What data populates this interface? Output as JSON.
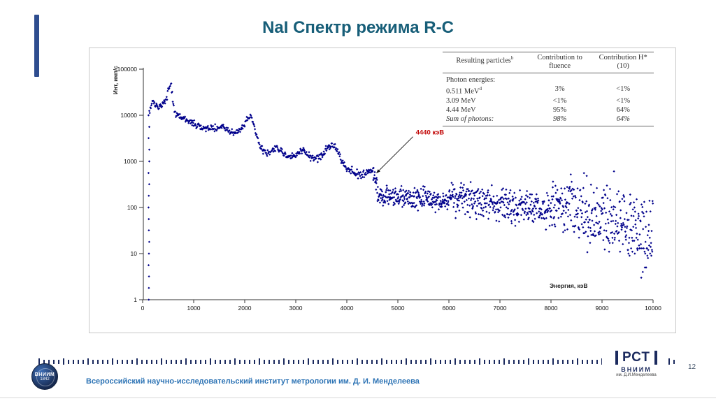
{
  "slide": {
    "title": "NaI Спектр режима R-C",
    "page_number": "12",
    "footer_institute": "Всероссийский научно-исследовательский институт метрологии им. Д. И. Менделеева",
    "logo_left": {
      "line1": "ВНИИМ",
      "line2": "1842"
    },
    "logo_right": {
      "brand": "РСТ",
      "org": "ВНИИМ",
      "sub": "им. Д.И.Менделеева"
    }
  },
  "colors": {
    "accent_bar": "#2e4d8f",
    "title": "#175e78",
    "annotation": "#c00000",
    "institute_text": "#2e74b5",
    "navy": "#1b2a5e"
  },
  "chart_data": {
    "type": "scatter",
    "title": "",
    "xlabel": "Энергия, кэВ",
    "ylabel": "Инт, имп/с",
    "y_scale": "log",
    "xlim": [
      0,
      10000
    ],
    "ylim": [
      1,
      100000
    ],
    "x_ticks": [
      0,
      1000,
      2000,
      3000,
      4000,
      5000,
      6000,
      7000,
      8000,
      9000,
      10000
    ],
    "y_ticks": [
      1,
      10,
      100,
      1000,
      10000,
      100000
    ],
    "grid": false,
    "marker_color": "#00008b",
    "marker_shape": "diamond",
    "annotation": {
      "text": "4440 кэВ",
      "color": "#c00000",
      "text_x": 5350,
      "text_y": 3800,
      "arrow_x": 4575,
      "arrow_y": 550
    },
    "left_column": {
      "x": 118,
      "values": [
        1,
        1.8,
        3.2,
        5.6,
        10,
        18,
        32,
        56,
        100,
        180,
        320,
        560,
        1000,
        1800,
        3200,
        5600,
        10000
      ]
    },
    "scatter_sigma_log": [
      [
        4500,
        0.02
      ],
      [
        6000,
        0.06
      ],
      [
        8000,
        0.09
      ],
      [
        9000,
        0.15
      ],
      [
        10001,
        0.22
      ]
    ],
    "quantize_above": 9100,
    "envelope_points": [
      [
        130,
        9000
      ],
      [
        150,
        12500
      ],
      [
        175,
        14000
      ],
      [
        200,
        15000
      ],
      [
        230,
        15800
      ],
      [
        260,
        15000
      ],
      [
        290,
        14000
      ],
      [
        320,
        13200
      ],
      [
        350,
        13400
      ],
      [
        380,
        14200
      ],
      [
        410,
        15200
      ],
      [
        440,
        17000
      ],
      [
        470,
        21000
      ],
      [
        500,
        28000
      ],
      [
        520,
        34000
      ],
      [
        540,
        38500
      ],
      [
        555,
        40000
      ],
      [
        570,
        33000
      ],
      [
        585,
        22000
      ],
      [
        600,
        14500
      ],
      [
        620,
        10800
      ],
      [
        650,
        9200
      ],
      [
        700,
        8300
      ],
      [
        750,
        7700
      ],
      [
        800,
        7200
      ],
      [
        850,
        6800
      ],
      [
        900,
        6400
      ],
      [
        950,
        6000
      ],
      [
        1000,
        5600
      ],
      [
        1050,
        5200
      ],
      [
        1100,
        4900
      ],
      [
        1150,
        4700
      ],
      [
        1200,
        4500
      ],
      [
        1250,
        4400
      ],
      [
        1300,
        4600
      ],
      [
        1350,
        4400
      ],
      [
        1400,
        4250
      ],
      [
        1450,
        4450
      ],
      [
        1500,
        4700
      ],
      [
        1550,
        4800
      ],
      [
        1600,
        4400
      ],
      [
        1650,
        4100
      ],
      [
        1700,
        3900
      ],
      [
        1750,
        3700
      ],
      [
        1800,
        3600
      ],
      [
        1850,
        3700
      ],
      [
        1900,
        4000
      ],
      [
        1950,
        4600
      ],
      [
        2000,
        5600
      ],
      [
        2050,
        7100
      ],
      [
        2100,
        8100
      ],
      [
        2130,
        7600
      ],
      [
        2160,
        6100
      ],
      [
        2200,
        4100
      ],
      [
        2250,
        2700
      ],
      [
        2300,
        1850
      ],
      [
        2350,
        1500
      ],
      [
        2400,
        1350
      ],
      [
        2450,
        1300
      ],
      [
        2500,
        1330
      ],
      [
        2550,
        1450
      ],
      [
        2600,
        1560
      ],
      [
        2650,
        1600
      ],
      [
        2700,
        1450
      ],
      [
        2750,
        1300
      ],
      [
        2800,
        1180
      ],
      [
        2850,
        1100
      ],
      [
        2900,
        1060
      ],
      [
        2950,
        1090
      ],
      [
        3000,
        1160
      ],
      [
        3050,
        1300
      ],
      [
        3100,
        1450
      ],
      [
        3150,
        1500
      ],
      [
        3200,
        1370
      ],
      [
        3250,
        1200
      ],
      [
        3300,
        1080
      ],
      [
        3350,
        1000
      ],
      [
        3400,
        960
      ],
      [
        3450,
        1010
      ],
      [
        3500,
        1110
      ],
      [
        3550,
        1300
      ],
      [
        3600,
        1560
      ],
      [
        3650,
        1760
      ],
      [
        3700,
        1860
      ],
      [
        3750,
        1800
      ],
      [
        3800,
        1500
      ],
      [
        3850,
        1150
      ],
      [
        3900,
        850
      ],
      [
        3950,
        680
      ],
      [
        4000,
        600
      ],
      [
        4050,
        560
      ],
      [
        4100,
        530
      ],
      [
        4150,
        500
      ],
      [
        4200,
        480
      ],
      [
        4250,
        460
      ],
      [
        4300,
        450
      ],
      [
        4350,
        470
      ],
      [
        4400,
        525
      ],
      [
        4440,
        555
      ],
      [
        4480,
        505
      ],
      [
        4520,
        380
      ],
      [
        4560,
        235
      ],
      [
        4600,
        150
      ],
      [
        4650,
        115
      ],
      [
        4700,
        101
      ],
      [
        4800,
        96
      ],
      [
        4900,
        97
      ],
      [
        5000,
        99
      ],
      [
        5100,
        98
      ],
      [
        5200,
        97
      ],
      [
        5300,
        96
      ],
      [
        5400,
        95
      ],
      [
        5500,
        94
      ],
      [
        5600,
        92
      ],
      [
        5700,
        90
      ],
      [
        5800,
        88
      ],
      [
        5900,
        86
      ],
      [
        6000,
        84
      ],
      [
        6100,
        82
      ],
      [
        6200,
        80
      ],
      [
        6300,
        78
      ],
      [
        6400,
        76
      ],
      [
        6500,
        73
      ],
      [
        6600,
        71
      ],
      [
        6700,
        68
      ],
      [
        6800,
        66
      ],
      [
        6900,
        63
      ],
      [
        7000,
        61
      ],
      [
        7100,
        59
      ],
      [
        7200,
        57
      ],
      [
        7300,
        55
      ],
      [
        7400,
        53
      ],
      [
        7500,
        51
      ],
      [
        7600,
        49
      ],
      [
        7700,
        47
      ],
      [
        7800,
        45
      ],
      [
        7900,
        43
      ],
      [
        8000,
        41
      ],
      [
        8100,
        38
      ],
      [
        8200,
        36
      ],
      [
        8300,
        33
      ],
      [
        8400,
        30
      ],
      [
        8500,
        27
      ],
      [
        8600,
        24
      ],
      [
        8700,
        21
      ],
      [
        8800,
        18
      ],
      [
        8900,
        15
      ],
      [
        9000,
        13
      ],
      [
        9100,
        11
      ],
      [
        9200,
        9.5
      ],
      [
        9300,
        8
      ],
      [
        9400,
        7
      ],
      [
        9500,
        6
      ],
      [
        9600,
        5.2
      ],
      [
        9700,
        4.6
      ],
      [
        9800,
        4.2
      ],
      [
        9900,
        3.8
      ],
      [
        10000,
        3.5
      ]
    ],
    "inset_table": {
      "headers": [
        {
          "text": "Resulting particles",
          "sup": "b"
        },
        {
          "text": "Contribution to fluence",
          "sup": ""
        },
        {
          "text": "Contribution H*(10)",
          "sup": ""
        }
      ],
      "rows": [
        {
          "label": "Photon energies:",
          "sup": "",
          "fluence": "",
          "h10": "",
          "italic": false
        },
        {
          "label": "0.511 MeV",
          "sup": "d",
          "fluence": "3%",
          "h10": "<1%",
          "italic": false
        },
        {
          "label": "3.09 MeV",
          "sup": "",
          "fluence": "<1%",
          "h10": "<1%",
          "italic": false
        },
        {
          "label": "4.44 MeV",
          "sup": "",
          "fluence": "95%",
          "h10": "64%",
          "italic": false
        },
        {
          "label": "Sum of photons:",
          "sup": "",
          "fluence": "98%",
          "h10": "64%",
          "italic": true
        }
      ]
    }
  }
}
